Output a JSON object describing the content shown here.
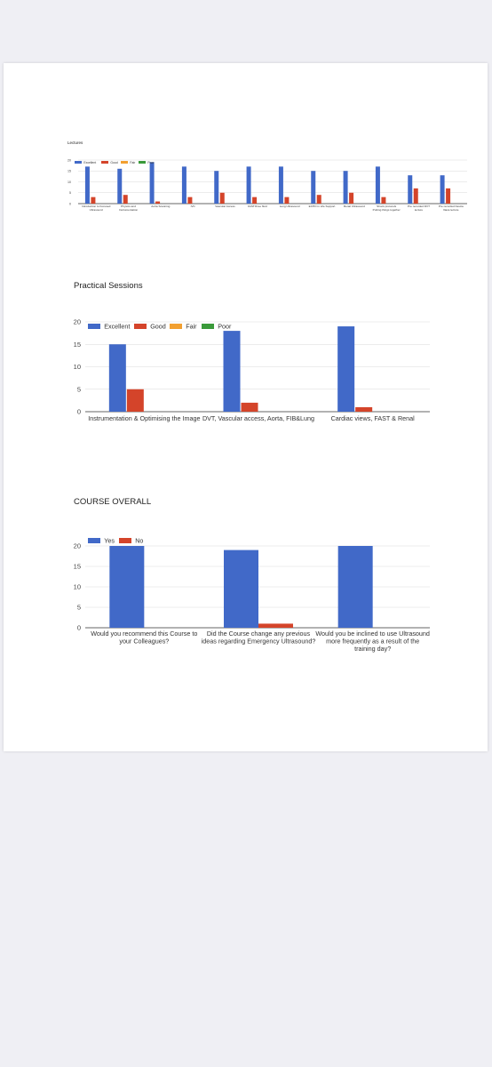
{
  "colors": {
    "excellent": "#4169c8",
    "good": "#d4442a",
    "fair": "#f2a030",
    "poor": "#3a9a3a",
    "yes": "#4169c8",
    "no": "#d4442a",
    "grid": "#d9d9d9"
  },
  "charts": [
    {
      "title": "Lectures",
      "chart_data": {
        "type": "bar",
        "title": "Lectures",
        "categories": [
          [
            "Introduction to Focused",
            "Ultrasound"
          ],
          [
            "Physics and",
            "Instrumentation"
          ],
          [
            "Aorta Scanning"
          ],
          [
            "IVC"
          ],
          [
            "Vascular Access"
          ],
          [
            "FAST/Free fluid"
          ],
          [
            "Lung Ultrasound"
          ],
          [
            "ECHO in Life Support"
          ],
          [
            "Renal Ultrasound"
          ],
          [
            "Shock protocols",
            "Putting things together"
          ],
          [
            "Pre recorded DVT",
            "lecture"
          ],
          [
            "Pre recorded Fascia",
            "Iliaca lecture"
          ]
        ],
        "series": [
          {
            "name": "Excellent",
            "color": "#4169c8",
            "values": [
              17,
              16,
              19,
              17,
              15,
              17,
              17,
              15,
              15,
              17,
              13,
              13
            ]
          },
          {
            "name": "Good",
            "color": "#d4442a",
            "values": [
              3,
              4,
              1,
              3,
              5,
              3,
              3,
              4,
              5,
              3,
              7,
              7
            ]
          },
          {
            "name": "Fair",
            "color": "#f2a030",
            "values": [
              0,
              0,
              0,
              0,
              0,
              0,
              0,
              0,
              0,
              0,
              0,
              0
            ]
          },
          {
            "name": "Poor",
            "color": "#3a9a3a",
            "values": [
              0,
              0,
              0,
              0,
              0,
              0,
              0,
              0,
              0,
              0,
              0,
              0
            ]
          }
        ],
        "yticks": [
          0,
          5,
          10,
          15,
          20
        ],
        "ylim": [
          0,
          20
        ],
        "legend": "top-left",
        "grid": true
      }
    },
    {
      "title": "Practical Sessions",
      "chart_data": {
        "type": "bar",
        "title": "Practical Sessions",
        "categories": [
          [
            "Instrumentation & Optimising the Image"
          ],
          [
            "DVT, Vascular access, Aorta, FIB&Lung"
          ],
          [
            "Cardiac views, FAST & Renal"
          ]
        ],
        "series": [
          {
            "name": "Excellent",
            "color": "#4169c8",
            "values": [
              15,
              18,
              19
            ]
          },
          {
            "name": "Good",
            "color": "#d4442a",
            "values": [
              5,
              2,
              1
            ]
          },
          {
            "name": "Fair",
            "color": "#f2a030",
            "values": [
              0,
              0,
              0
            ]
          },
          {
            "name": "Poor",
            "color": "#3a9a3a",
            "values": [
              0,
              0,
              0
            ]
          }
        ],
        "yticks": [
          0,
          5,
          10,
          15,
          20
        ],
        "ylim": [
          0,
          20
        ],
        "legend": "top-left",
        "grid": true
      }
    },
    {
      "title": "COURSE OVERALL",
      "chart_data": {
        "type": "bar",
        "title": "COURSE OVERALL",
        "categories": [
          [
            "Would you recommend this Course to",
            "your Colleagues?"
          ],
          [
            "Did the Course change any previous",
            "ideas regarding Emergency Ultrasound?"
          ],
          [
            "Would you be inclined to use Ultrasound",
            "more frequently as a result of the",
            "training day?"
          ]
        ],
        "series": [
          {
            "name": "Yes",
            "color": "#4169c8",
            "values": [
              20,
              19,
              20
            ]
          },
          {
            "name": "No",
            "color": "#d4442a",
            "values": [
              0,
              1,
              0
            ]
          }
        ],
        "yticks": [
          0,
          5,
          10,
          15,
          20
        ],
        "ylim": [
          0,
          20
        ],
        "legend": "top-left",
        "grid": true
      }
    }
  ]
}
